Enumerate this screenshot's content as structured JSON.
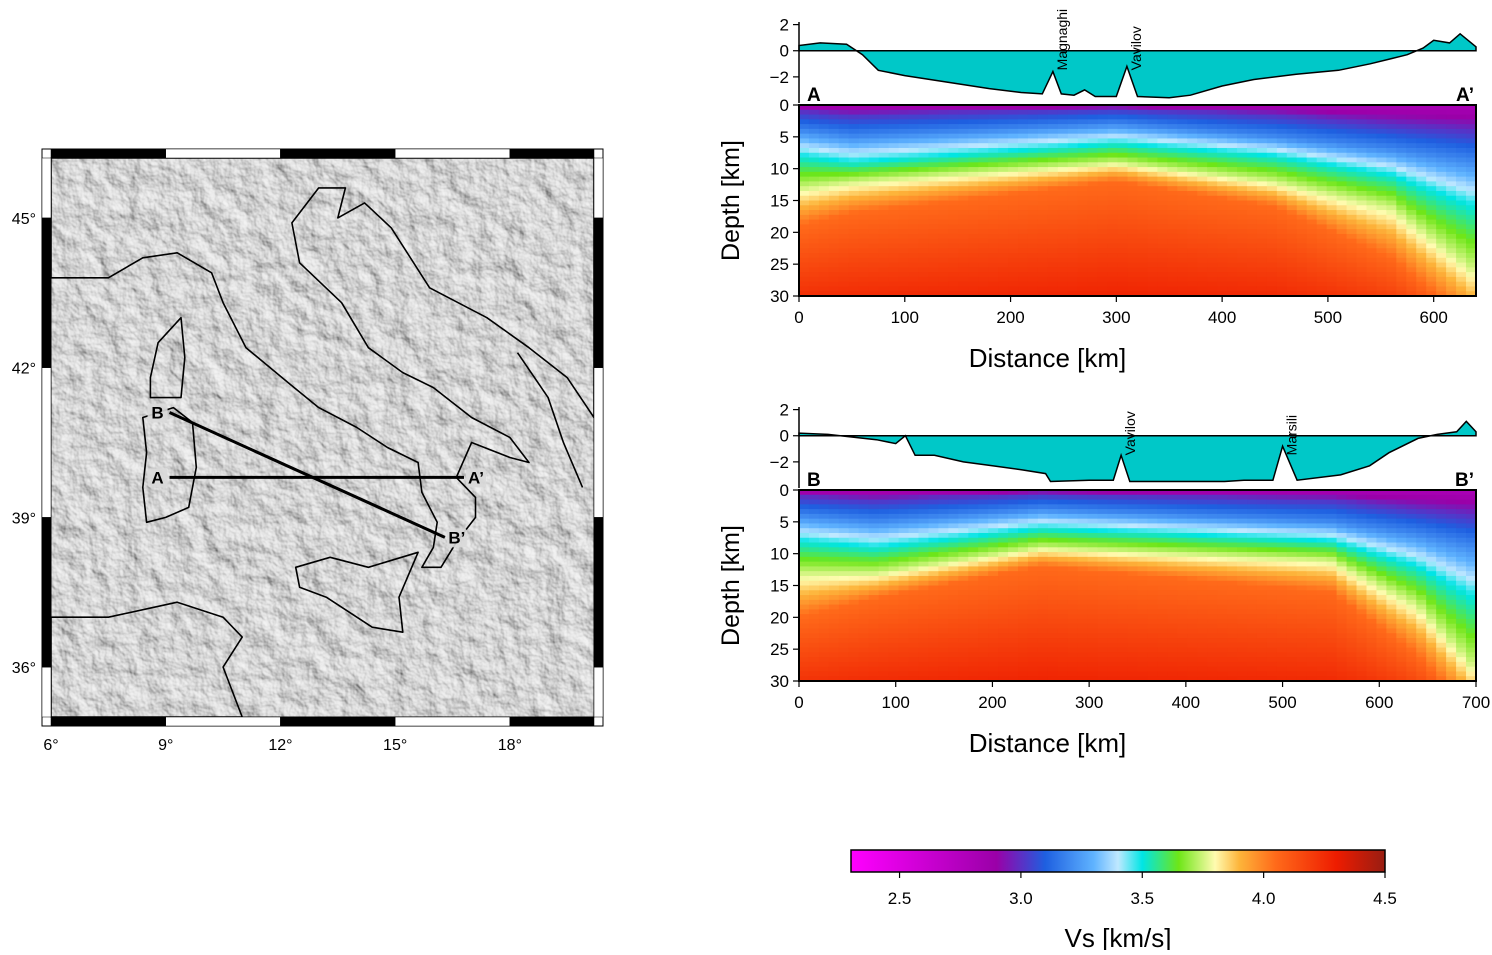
{
  "map": {
    "lon_ticks": [
      "6°",
      "9°",
      "12°",
      "15°",
      "18°"
    ],
    "lat_ticks": [
      "45°",
      "42°",
      "39°",
      "36°"
    ],
    "lon_values": [
      6,
      9,
      12,
      15,
      18
    ],
    "lat_values": [
      45,
      42,
      39,
      36
    ],
    "extent": {
      "lon": [
        6,
        20.2
      ],
      "lat": [
        35,
        46.2
      ]
    },
    "profiles": [
      {
        "start_label": "A",
        "end_label": "A’",
        "start": [
          9.1,
          39.8
        ],
        "end": [
          16.8,
          39.8
        ]
      },
      {
        "start_label": "B",
        "end_label": "B’",
        "start": [
          9.1,
          41.1
        ],
        "end": [
          16.3,
          38.6
        ]
      }
    ]
  },
  "sections": [
    {
      "start_label": "A",
      "end_label": "A’",
      "x_ticks": [
        "0",
        "100",
        "200",
        "300",
        "400",
        "500",
        "600"
      ],
      "x_values": [
        0,
        100,
        200,
        300,
        400,
        500,
        600
      ],
      "x_max": 640,
      "xlabel": "Distance [km]",
      "ylabel": "Depth [km]",
      "depth_ticks": [
        "0",
        "5",
        "10",
        "15",
        "20",
        "25",
        "30"
      ],
      "depth_values": [
        0,
        5,
        10,
        15,
        20,
        25,
        30
      ],
      "topo_ticks": [
        "2",
        "0",
        "−2"
      ],
      "topo_values": [
        2,
        0,
        -2
      ],
      "features": [
        {
          "name": "Magnaghi",
          "x": 240
        },
        {
          "name": "Vavilov",
          "x": 310
        }
      ],
      "bathymetry_km": [
        [
          0,
          0.4
        ],
        [
          20,
          0.6
        ],
        [
          45,
          0.5
        ],
        [
          60,
          -0.3
        ],
        [
          75,
          -1.5
        ],
        [
          100,
          -1.9
        ],
        [
          140,
          -2.4
        ],
        [
          180,
          -2.9
        ],
        [
          210,
          -3.2
        ],
        [
          230,
          -3.3
        ],
        [
          240,
          -1.6
        ],
        [
          248,
          -3.3
        ],
        [
          260,
          -3.4
        ],
        [
          270,
          -3.0
        ],
        [
          280,
          -3.5
        ],
        [
          300,
          -3.5
        ],
        [
          310,
          -1.2
        ],
        [
          320,
          -3.5
        ],
        [
          350,
          -3.6
        ],
        [
          370,
          -3.4
        ],
        [
          400,
          -2.7
        ],
        [
          430,
          -2.2
        ],
        [
          470,
          -1.8
        ],
        [
          510,
          -1.5
        ],
        [
          540,
          -1.0
        ],
        [
          560,
          -0.6
        ],
        [
          575,
          -0.3
        ],
        [
          590,
          0.2
        ],
        [
          600,
          0.8
        ],
        [
          615,
          0.6
        ],
        [
          625,
          1.3
        ],
        [
          640,
          0.3
        ]
      ],
      "velocity_key_depths_km": [
        {
          "x": 0,
          "d1": 1,
          "d2": 4,
          "d3": 8,
          "d4": 13,
          "d5": 19
        },
        {
          "x": 50,
          "d1": 1.5,
          "d2": 5,
          "d3": 9,
          "d4": 12,
          "d5": 17
        },
        {
          "x": 300,
          "d1": 0.5,
          "d2": 3,
          "d3": 6,
          "d4": 9,
          "d5": 12
        },
        {
          "x": 450,
          "d1": 1.5,
          "d2": 5,
          "d3": 8,
          "d4": 12,
          "d5": 16
        },
        {
          "x": 560,
          "d1": 3,
          "d2": 7,
          "d3": 11,
          "d4": 16,
          "d5": 24
        },
        {
          "x": 640,
          "d1": 4,
          "d2": 9,
          "d3": 16,
          "d4": 26,
          "d5": 35
        }
      ]
    },
    {
      "start_label": "B",
      "end_label": "B’",
      "x_ticks": [
        "0",
        "100",
        "200",
        "300",
        "400",
        "500",
        "600",
        "700"
      ],
      "x_values": [
        0,
        100,
        200,
        300,
        400,
        500,
        600,
        700
      ],
      "x_max": 700,
      "xlabel": "Distance [km]",
      "ylabel": "Depth [km]",
      "depth_ticks": [
        "0",
        "5",
        "10",
        "15",
        "20",
        "25",
        "30"
      ],
      "depth_values": [
        0,
        5,
        10,
        15,
        20,
        25,
        30
      ],
      "topo_ticks": [
        "2",
        "0",
        "−2"
      ],
      "topo_values": [
        2,
        0,
        -2
      ],
      "features": [
        {
          "name": "Vavilov",
          "x": 333
        },
        {
          "name": "Marsili",
          "x": 500
        }
      ],
      "bathymetry_km": [
        [
          0,
          0.2
        ],
        [
          30,
          0.1
        ],
        [
          80,
          -0.3
        ],
        [
          100,
          -0.6
        ],
        [
          110,
          0.0
        ],
        [
          120,
          -1.5
        ],
        [
          140,
          -1.5
        ],
        [
          170,
          -2.0
        ],
        [
          200,
          -2.3
        ],
        [
          230,
          -2.6
        ],
        [
          255,
          -2.9
        ],
        [
          260,
          -3.5
        ],
        [
          300,
          -3.4
        ],
        [
          325,
          -3.4
        ],
        [
          333,
          -1.5
        ],
        [
          342,
          -3.5
        ],
        [
          380,
          -3.5
        ],
        [
          440,
          -3.5
        ],
        [
          460,
          -3.4
        ],
        [
          490,
          -3.4
        ],
        [
          500,
          -0.8
        ],
        [
          515,
          -3.4
        ],
        [
          560,
          -3.0
        ],
        [
          590,
          -2.3
        ],
        [
          610,
          -1.3
        ],
        [
          640,
          -0.2
        ],
        [
          660,
          0.1
        ],
        [
          680,
          0.3
        ],
        [
          690,
          1.1
        ],
        [
          700,
          0.3
        ]
      ],
      "velocity_key_depths_km": [
        {
          "x": 0,
          "d1": 1,
          "d2": 4,
          "d3": 8,
          "d4": 13,
          "d5": 20
        },
        {
          "x": 80,
          "d1": 1.5,
          "d2": 5,
          "d3": 9,
          "d4": 13,
          "d5": 17
        },
        {
          "x": 250,
          "d1": 0.5,
          "d2": 3,
          "d3": 6,
          "d4": 9,
          "d5": 12
        },
        {
          "x": 550,
          "d1": 1.5,
          "d2": 5,
          "d3": 8,
          "d4": 11,
          "d5": 16
        },
        {
          "x": 640,
          "d1": 3,
          "d2": 7,
          "d3": 12,
          "d4": 18,
          "d5": 26
        },
        {
          "x": 700,
          "d1": 4,
          "d2": 9,
          "d3": 17,
          "d4": 28,
          "d5": 36
        }
      ]
    }
  ],
  "colorbar": {
    "label": "Vs [km/s]",
    "min": 2.3,
    "max": 4.5,
    "ticks": [
      "2.5",
      "3.0",
      "3.5",
      "4.0",
      "4.5"
    ],
    "tick_values": [
      2.5,
      3.0,
      3.5,
      4.0,
      4.5
    ],
    "stops": [
      {
        "v": 2.3,
        "color": "#ff00ff"
      },
      {
        "v": 2.9,
        "color": "#9a00a8"
      },
      {
        "v": 3.1,
        "color": "#1e5fe0"
      },
      {
        "v": 3.3,
        "color": "#5fb3ff"
      },
      {
        "v": 3.4,
        "color": "#bfe8ff"
      },
      {
        "v": 3.5,
        "color": "#00e5e5"
      },
      {
        "v": 3.65,
        "color": "#6ee617"
      },
      {
        "v": 3.8,
        "color": "#fffbb0"
      },
      {
        "v": 3.9,
        "color": "#fdb43a"
      },
      {
        "v": 4.05,
        "color": "#ff6a1a"
      },
      {
        "v": 4.3,
        "color": "#ee1c00"
      },
      {
        "v": 4.5,
        "color": "#981d12"
      }
    ]
  }
}
